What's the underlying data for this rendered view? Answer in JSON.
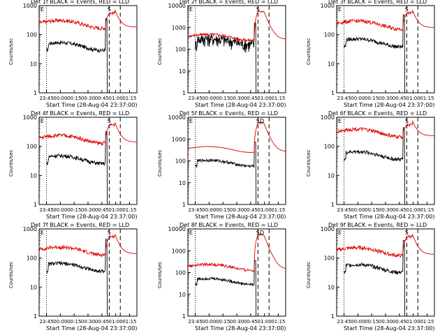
{
  "chart_data": [
    {
      "type": "line",
      "title": "Det 1f BLACK = Events, RED = LLD",
      "xlabel": "Start Time (28-Aug-04 23:37:00)",
      "ylabel": "Counts/sec",
      "yscale": "log",
      "ylim": [
        1,
        1000
      ],
      "yticks": [
        "1",
        "10",
        "100",
        "1000"
      ],
      "xticks": [
        "23:45",
        "00:00",
        "00:15",
        "00:30",
        "00:45",
        "01:00",
        "01:15"
      ],
      "annotations": [
        "E",
        "S"
      ],
      "series": [
        {
          "color": "#000000",
          "profile": "flat",
          "level": 45
        },
        {
          "color": "#e00000",
          "profile": "flat",
          "level": 260
        }
      ]
    },
    {
      "type": "line",
      "title": "Det 2f BLACK = Events, RED = LLD",
      "xlabel": "Start Time (28-Aug-04 23:37:00)",
      "ylabel": "Counts/sec",
      "yscale": "log",
      "ylim": [
        1,
        10000
      ],
      "yticks": [
        "1",
        "10",
        "100",
        "1000",
        "10000"
      ],
      "xticks": [
        "23:45",
        "00:00",
        "00:15",
        "00:30",
        "00:45",
        "01:00",
        "01:15"
      ],
      "annotations": [
        "E",
        "S"
      ],
      "series": [
        {
          "color": "#000000",
          "profile": "noisy",
          "level": 200
        },
        {
          "color": "#e00000",
          "profile": "flat",
          "level": 400
        }
      ]
    },
    {
      "type": "line",
      "title": "Det 3f BLACK = Events, RED = LLD",
      "xlabel": "Start Time (28-Aug-04 23:37:00)",
      "ylabel": "Counts/sec",
      "yscale": "log",
      "ylim": [
        1,
        1000
      ],
      "yticks": [
        "1",
        "10",
        "100",
        "1000"
      ],
      "xticks": [
        "23:45",
        "00:00",
        "00:15",
        "00:30",
        "00:45",
        "01:00",
        "01:15"
      ],
      "annotations": [
        "E",
        "S"
      ],
      "series": [
        {
          "color": "#000000",
          "profile": "flat",
          "level": 60
        },
        {
          "color": "#e00000",
          "profile": "flat",
          "level": 250
        }
      ]
    },
    {
      "type": "line",
      "title": "Det 4f BLACK = Events, RED = LLD",
      "xlabel": "Start Time (28-Aug-04 23:37:00)",
      "ylabel": "Counts/sec",
      "yscale": "log",
      "ylim": [
        1,
        1000
      ],
      "yticks": [
        "1",
        "10",
        "100",
        "1000"
      ],
      "xticks": [
        "23:45",
        "00:00",
        "00:15",
        "00:30",
        "00:45",
        "01:00",
        "01:15"
      ],
      "annotations": [
        "E",
        "S"
      ],
      "series": [
        {
          "color": "#000000",
          "profile": "flat",
          "level": 40
        },
        {
          "color": "#e00000",
          "profile": "flat",
          "level": 200
        }
      ]
    },
    {
      "type": "line",
      "title": "Det 5f BLACK = Events, RED = LLD",
      "xlabel": "Start Time (28-Aug-04 23:37:00)",
      "ylabel": "Counts/sec",
      "yscale": "log",
      "ylim": [
        1,
        10000
      ],
      "yticks": [
        "1",
        "10",
        "100",
        "1000",
        "10000"
      ],
      "xticks": [
        "23:45",
        "00:00",
        "00:15",
        "00:30",
        "00:45",
        "01:00",
        "01:15"
      ],
      "annotations": [
        "E",
        "S",
        "D"
      ],
      "series": [
        {
          "color": "#000000",
          "profile": "flat",
          "level": 90
        },
        {
          "color": "#e00000",
          "profile": "smooth",
          "level": 380
        }
      ]
    },
    {
      "type": "line",
      "title": "Det 6f BLACK = Events, RED = LLD",
      "xlabel": "Start Time (28-Aug-04 23:37:00)",
      "ylabel": "Counts/sec",
      "yscale": "log",
      "ylim": [
        1,
        1000
      ],
      "yticks": [
        "1",
        "10",
        "100",
        "1000"
      ],
      "xticks": [
        "23:45",
        "00:00",
        "00:15",
        "00:30",
        "00:45",
        "01:00",
        "01:15"
      ],
      "annotations": [
        "E",
        "S"
      ],
      "series": [
        {
          "color": "#000000",
          "profile": "flat",
          "level": 55
        },
        {
          "color": "#e00000",
          "profile": "flat",
          "level": 330
        }
      ]
    },
    {
      "type": "line",
      "title": "Det 7f BLACK = Events, RED = LLD",
      "xlabel": "Start Time (28-Aug-04 23:37:00)",
      "ylabel": "Counts/sec",
      "yscale": "log",
      "ylim": [
        1,
        1000
      ],
      "yticks": [
        "1",
        "10",
        "100",
        "1000"
      ],
      "xticks": [
        "23:45",
        "00:00",
        "00:15",
        "00:30",
        "00:45",
        "01:00",
        "01:15"
      ],
      "annotations": [
        "E",
        "S"
      ],
      "series": [
        {
          "color": "#000000",
          "profile": "flat",
          "level": 55
        },
        {
          "color": "#e00000",
          "profile": "flat",
          "level": 200
        }
      ]
    },
    {
      "type": "line",
      "title": "Det 8f BLACK = Events, RED = LLD",
      "xlabel": "Start Time (28-Aug-04 23:37:00)",
      "ylabel": "Counts/sec",
      "yscale": "log",
      "ylim": [
        1,
        10000
      ],
      "yticks": [
        "1",
        "10",
        "100",
        "1000",
        "10000"
      ],
      "xticks": [
        "23:45",
        "00:00",
        "00:15",
        "00:30",
        "00:45",
        "01:00",
        "01:15"
      ],
      "annotations": [
        "E",
        "S",
        "D"
      ],
      "series": [
        {
          "color": "#000000",
          "profile": "flat",
          "level": 45
        },
        {
          "color": "#e00000",
          "profile": "flat",
          "level": 200
        }
      ]
    },
    {
      "type": "line",
      "title": "Det 9f BLACK = Events, RED = LLD",
      "xlabel": "Start Time (28-Aug-04 23:37:00)",
      "ylabel": "Counts/sec",
      "yscale": "log",
      "ylim": [
        1,
        1000
      ],
      "yticks": [
        "1",
        "10",
        "100",
        "1000"
      ],
      "xticks": [
        "23:45",
        "00:00",
        "00:15",
        "00:30",
        "00:45",
        "01:00",
        "01:15"
      ],
      "annotations": [
        "E",
        "S"
      ],
      "series": [
        {
          "color": "#000000",
          "profile": "flat",
          "level": 50
        },
        {
          "color": "#e00000",
          "profile": "flat",
          "level": 190
        }
      ]
    }
  ]
}
